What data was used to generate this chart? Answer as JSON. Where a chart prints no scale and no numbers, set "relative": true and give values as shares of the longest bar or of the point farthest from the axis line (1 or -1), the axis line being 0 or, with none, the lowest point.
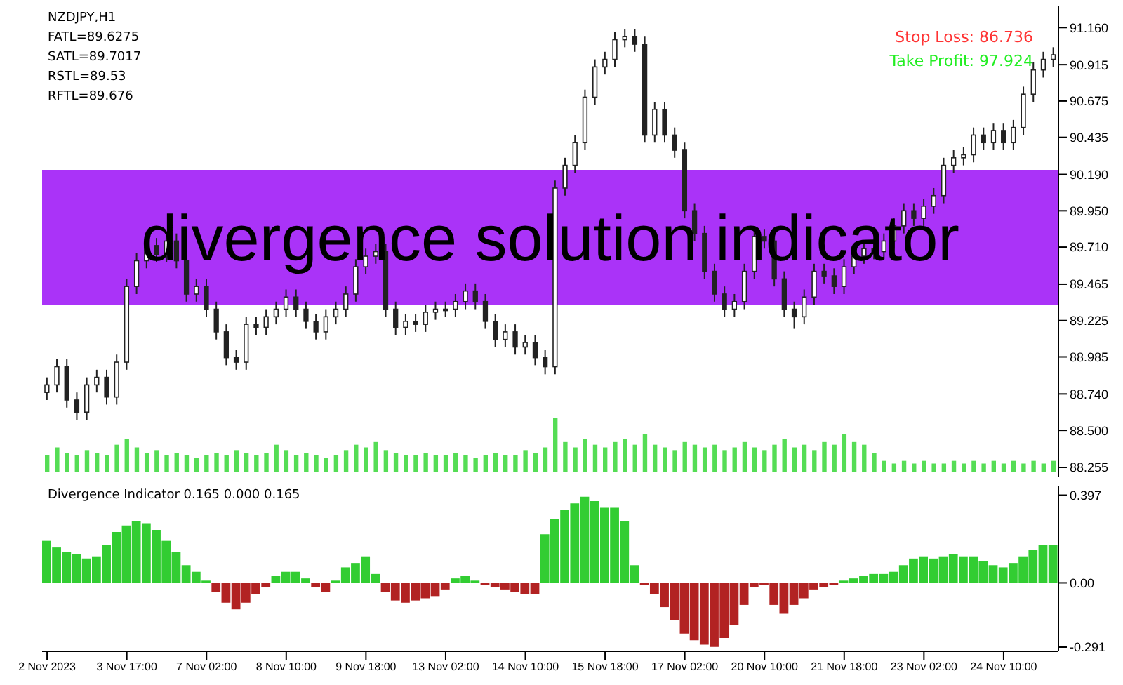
{
  "chart_data": [
    {
      "type": "candlestick",
      "title": "NZDJPY,H1",
      "annotations": [
        "FATL=89.6275",
        "SATL=89.7017",
        "RSTL=89.53",
        "RFTL=89.676",
        "Stop Loss: 86.736",
        "Take Profit: 97.924"
      ],
      "categories": [
        null,
        null,
        null,
        null,
        null,
        null,
        null,
        null,
        null,
        null,
        null,
        null,
        null,
        null,
        null,
        null,
        null,
        null,
        null,
        null,
        null,
        null,
        null,
        null,
        null,
        null,
        null,
        null,
        null,
        null,
        null,
        null,
        null,
        null,
        null,
        null,
        null,
        null,
        null,
        null,
        null,
        null,
        null,
        null,
        null,
        null,
        null,
        null,
        null,
        null,
        null,
        null,
        null,
        null,
        null,
        null,
        null,
        null,
        null,
        null,
        null,
        null,
        null,
        null,
        null,
        null,
        null,
        null,
        null,
        null,
        null,
        null,
        null,
        null,
        null,
        null,
        null,
        null,
        null,
        null,
        null,
        null,
        null,
        null,
        null,
        null,
        null,
        null,
        null,
        null,
        null,
        null,
        null,
        null,
        null,
        null,
        null,
        null,
        null,
        null,
        null,
        null
      ],
      "ohlc": [
        [
          88.75,
          88.85,
          88.7,
          88.8
        ],
        [
          88.8,
          88.97,
          88.75,
          88.92
        ],
        [
          88.92,
          88.97,
          88.65,
          88.7
        ],
        [
          88.7,
          88.75,
          88.57,
          88.62
        ],
        [
          88.62,
          88.85,
          88.57,
          88.8
        ],
        [
          88.8,
          88.9,
          88.75,
          88.85
        ],
        [
          88.85,
          88.9,
          88.67,
          88.72
        ],
        [
          88.72,
          89.0,
          88.67,
          88.95
        ],
        [
          88.95,
          89.5,
          88.9,
          89.45
        ],
        [
          89.45,
          89.67,
          89.4,
          89.62
        ],
        [
          89.62,
          89.77,
          89.57,
          89.72
        ],
        [
          89.72,
          89.77,
          89.61,
          89.66
        ],
        [
          89.66,
          89.8,
          89.61,
          89.75
        ],
        [
          89.75,
          89.8,
          89.57,
          89.62
        ],
        [
          89.62,
          89.67,
          89.35,
          89.4
        ],
        [
          89.4,
          89.5,
          89.35,
          89.45
        ],
        [
          89.45,
          89.5,
          89.25,
          89.3
        ],
        [
          89.3,
          89.35,
          89.1,
          89.15
        ],
        [
          89.15,
          89.2,
          88.93,
          88.98
        ],
        [
          88.98,
          89.03,
          88.9,
          88.95
        ],
        [
          88.95,
          89.25,
          88.9,
          89.2
        ],
        [
          89.2,
          89.25,
          89.13,
          89.18
        ],
        [
          89.18,
          89.3,
          89.13,
          89.25
        ],
        [
          89.25,
          89.35,
          89.2,
          89.3
        ],
        [
          89.3,
          89.43,
          89.25,
          89.38
        ],
        [
          89.38,
          89.43,
          89.25,
          89.3
        ],
        [
          89.3,
          89.35,
          89.17,
          89.22
        ],
        [
          89.22,
          89.27,
          89.1,
          89.15
        ],
        [
          89.15,
          89.3,
          89.1,
          89.25
        ],
        [
          89.25,
          89.35,
          89.2,
          89.3
        ],
        [
          89.3,
          89.45,
          89.25,
          89.4
        ],
        [
          89.4,
          89.63,
          89.35,
          89.58
        ],
        [
          89.58,
          89.7,
          89.53,
          89.65
        ],
        [
          89.65,
          89.73,
          89.6,
          89.68
        ],
        [
          89.68,
          89.73,
          89.25,
          89.3
        ],
        [
          89.3,
          89.35,
          89.13,
          89.18
        ],
        [
          89.18,
          89.27,
          89.13,
          89.22
        ],
        [
          89.22,
          89.27,
          89.15,
          89.2
        ],
        [
          89.2,
          89.33,
          89.15,
          89.28
        ],
        [
          89.28,
          89.35,
          89.23,
          89.3
        ],
        [
          89.3,
          89.35,
          89.25,
          89.3
        ],
        [
          89.3,
          89.4,
          89.25,
          89.35
        ],
        [
          89.35,
          89.47,
          89.3,
          89.42
        ],
        [
          89.42,
          89.47,
          89.3,
          89.35
        ],
        [
          89.35,
          89.4,
          89.17,
          89.22
        ],
        [
          89.22,
          89.27,
          89.05,
          89.1
        ],
        [
          89.1,
          89.2,
          89.05,
          89.15
        ],
        [
          89.15,
          89.2,
          89.0,
          89.05
        ],
        [
          89.05,
          89.13,
          89.0,
          89.08
        ],
        [
          89.08,
          89.13,
          88.93,
          88.98
        ],
        [
          88.98,
          89.03,
          88.87,
          88.92
        ],
        [
          88.92,
          90.15,
          88.87,
          90.1
        ],
        [
          90.1,
          90.3,
          90.05,
          90.25
        ],
        [
          90.25,
          90.45,
          90.2,
          90.4
        ],
        [
          90.4,
          90.75,
          90.35,
          90.7
        ],
        [
          90.7,
          90.95,
          90.65,
          90.9
        ],
        [
          90.9,
          91.0,
          90.85,
          90.95
        ],
        [
          90.95,
          91.13,
          90.9,
          91.08
        ],
        [
          91.08,
          91.15,
          91.03,
          91.1
        ],
        [
          91.1,
          91.15,
          91.0,
          91.05
        ],
        [
          91.05,
          91.1,
          90.4,
          90.45
        ],
        [
          90.45,
          90.67,
          90.4,
          90.62
        ],
        [
          90.62,
          90.67,
          90.4,
          90.45
        ],
        [
          90.45,
          90.5,
          90.3,
          90.35
        ],
        [
          90.35,
          90.4,
          89.9,
          89.95
        ],
        [
          89.95,
          90.0,
          89.75,
          89.8
        ],
        [
          89.8,
          89.85,
          89.5,
          89.55
        ],
        [
          89.55,
          89.6,
          89.35,
          89.4
        ],
        [
          89.4,
          89.45,
          89.25,
          89.3
        ],
        [
          89.3,
          89.4,
          89.25,
          89.35
        ],
        [
          89.35,
          89.6,
          89.3,
          89.55
        ],
        [
          89.55,
          89.83,
          89.5,
          89.78
        ],
        [
          89.78,
          89.83,
          89.7,
          89.75
        ],
        [
          89.75,
          89.8,
          89.45,
          89.5
        ],
        [
          89.5,
          89.55,
          89.25,
          89.3
        ],
        [
          89.3,
          89.35,
          89.17,
          89.25
        ],
        [
          89.25,
          89.43,
          89.2,
          89.38
        ],
        [
          89.38,
          89.6,
          89.33,
          89.55
        ],
        [
          89.55,
          89.6,
          89.47,
          89.52
        ],
        [
          89.52,
          89.57,
          89.4,
          89.45
        ],
        [
          89.45,
          89.63,
          89.4,
          89.58
        ],
        [
          89.58,
          89.7,
          89.53,
          89.65
        ],
        [
          89.65,
          89.75,
          89.6,
          89.7
        ],
        [
          89.7,
          89.75,
          89.63,
          89.68
        ],
        [
          89.68,
          89.8,
          89.63,
          89.75
        ],
        [
          89.75,
          89.9,
          89.7,
          89.85
        ],
        [
          89.85,
          90.0,
          89.8,
          89.95
        ],
        [
          89.95,
          90.0,
          89.85,
          89.9
        ],
        [
          89.9,
          90.03,
          89.85,
          89.98
        ],
        [
          89.98,
          90.1,
          89.93,
          90.05
        ],
        [
          90.05,
          90.3,
          90.0,
          90.25
        ],
        [
          90.25,
          90.35,
          90.2,
          90.3
        ],
        [
          90.3,
          90.37,
          90.25,
          90.32
        ],
        [
          90.32,
          90.5,
          90.27,
          90.45
        ],
        [
          90.45,
          90.5,
          90.35,
          90.4
        ],
        [
          90.4,
          90.53,
          90.35,
          90.48
        ],
        [
          90.48,
          90.53,
          90.35,
          90.4
        ],
        [
          90.4,
          90.55,
          90.35,
          90.5
        ],
        [
          90.5,
          90.77,
          90.45,
          90.72
        ],
        [
          90.72,
          90.93,
          90.67,
          90.88
        ],
        [
          90.88,
          91.0,
          90.83,
          90.95
        ],
        [
          90.95,
          91.03,
          90.9,
          90.98
        ]
      ],
      "ylim": [
        88.19,
        91.305
      ],
      "yticks": [
        {
          "value": 88.255,
          "label": "88.255"
        },
        {
          "value": 88.5,
          "label": "88.500"
        },
        {
          "value": 88.74,
          "label": "88.740"
        },
        {
          "value": 88.985,
          "label": "88.985"
        },
        {
          "value": 89.225,
          "label": "89.225"
        },
        {
          "value": 89.465,
          "label": "89.465"
        },
        {
          "value": 89.71,
          "label": "89.710"
        },
        {
          "value": 89.95,
          "label": "89.950"
        },
        {
          "value": 90.19,
          "label": "90.190"
        },
        {
          "value": 90.435,
          "label": "90.435"
        },
        {
          "value": 90.675,
          "label": "90.675"
        },
        {
          "value": 90.915,
          "label": "90.915"
        },
        {
          "value": 91.16,
          "label": "91.160"
        }
      ],
      "bands": [
        {
          "axis": "y",
          "from": 89.33,
          "to": 90.22,
          "color": "#aa33f8",
          "label": "divergence solution indicator"
        }
      ],
      "tick_labels": "y"
    },
    {
      "type": "bar",
      "title": "Divergence Indicator 0.165 0.000 0.165",
      "categories": [
        "2 Nov 2023",
        null,
        null,
        null,
        null,
        null,
        null,
        null,
        "3 Nov 17:00",
        null,
        null,
        null,
        null,
        null,
        null,
        null,
        "7 Nov 02:00",
        null,
        null,
        null,
        null,
        null,
        null,
        null,
        "8 Nov 10:00",
        null,
        null,
        null,
        null,
        null,
        null,
        null,
        "9 Nov 18:00",
        null,
        null,
        null,
        null,
        null,
        null,
        null,
        "13 Nov 02:00",
        null,
        null,
        null,
        null,
        null,
        null,
        null,
        "14 Nov 10:00",
        null,
        null,
        null,
        null,
        null,
        null,
        null,
        "15 Nov 18:00",
        null,
        null,
        null,
        null,
        null,
        null,
        null,
        "17 Nov 02:00",
        null,
        null,
        null,
        null,
        null,
        null,
        null,
        "20 Nov 10:00",
        null,
        null,
        null,
        null,
        null,
        null,
        null,
        "21 Nov 18:00",
        null,
        null,
        null,
        null,
        null,
        null,
        null,
        "23 Nov 02:00",
        null,
        null,
        null,
        null,
        null,
        null,
        null,
        "24 Nov 10:00",
        null,
        null,
        null,
        null,
        null
      ],
      "values": [
        0.19,
        0.16,
        0.14,
        0.13,
        0.11,
        0.12,
        0.17,
        0.23,
        0.26,
        0.28,
        0.27,
        0.24,
        0.19,
        0.14,
        0.08,
        0.05,
        0.01,
        -0.04,
        -0.09,
        -0.12,
        -0.09,
        -0.05,
        -0.02,
        0.03,
        0.05,
        0.05,
        0.02,
        -0.02,
        -0.04,
        0.01,
        0.07,
        0.09,
        0.12,
        0.04,
        -0.04,
        -0.08,
        -0.09,
        -0.08,
        -0.07,
        -0.06,
        -0.03,
        0.02,
        0.03,
        0.01,
        -0.01,
        -0.02,
        -0.03,
        -0.04,
        -0.05,
        -0.05,
        0.22,
        0.29,
        0.33,
        0.36,
        0.39,
        0.37,
        0.34,
        0.34,
        0.28,
        0.08,
        -0.01,
        -0.05,
        -0.11,
        -0.17,
        -0.23,
        -0.26,
        -0.28,
        -0.29,
        -0.25,
        -0.19,
        -0.1,
        -0.02,
        -0.01,
        -0.1,
        -0.14,
        -0.1,
        -0.07,
        -0.03,
        -0.02,
        -0.01,
        0.01,
        0.02,
        0.03,
        0.04,
        0.04,
        0.05,
        0.08,
        0.11,
        0.12,
        0.11,
        0.12,
        0.13,
        0.12,
        0.12,
        0.1,
        0.08,
        0.07,
        0.09,
        0.12,
        0.15,
        0.17,
        0.17
      ],
      "colors": [
        "#32cd32",
        "#32cd32",
        "#32cd32",
        "#32cd32",
        "#32cd32",
        "#32cd32",
        "#32cd32",
        "#32cd32",
        "#32cd32",
        "#32cd32",
        "#32cd32",
        "#32cd32",
        "#32cd32",
        "#32cd32",
        "#32cd32",
        "#32cd32",
        "#32cd32",
        "#b22222",
        "#b22222",
        "#b22222",
        "#b22222",
        "#b22222",
        "#b22222",
        "#32cd32",
        "#32cd32",
        "#32cd32",
        "#32cd32",
        "#b22222",
        "#b22222",
        "#32cd32",
        "#32cd32",
        "#32cd32",
        "#32cd32",
        "#32cd32",
        "#b22222",
        "#b22222",
        "#b22222",
        "#b22222",
        "#b22222",
        "#b22222",
        "#b22222",
        "#32cd32",
        "#32cd32",
        "#32cd32",
        "#b22222",
        "#b22222",
        "#b22222",
        "#b22222",
        "#b22222",
        "#b22222",
        "#32cd32",
        "#32cd32",
        "#32cd32",
        "#32cd32",
        "#32cd32",
        "#32cd32",
        "#32cd32",
        "#32cd32",
        "#32cd32",
        "#32cd32",
        "#b22222",
        "#b22222",
        "#b22222",
        "#b22222",
        "#b22222",
        "#b22222",
        "#b22222",
        "#b22222",
        "#b22222",
        "#b22222",
        "#b22222",
        "#b22222",
        "#b22222",
        "#b22222",
        "#b22222",
        "#b22222",
        "#b22222",
        "#b22222",
        "#b22222",
        "#b22222",
        "#32cd32",
        "#32cd32",
        "#32cd32",
        "#32cd32",
        "#32cd32",
        "#32cd32",
        "#32cd32",
        "#32cd32",
        "#32cd32",
        "#32cd32",
        "#32cd32",
        "#32cd32",
        "#32cd32",
        "#32cd32",
        "#32cd32",
        "#32cd32",
        "#32cd32",
        "#32cd32",
        "#32cd32",
        "#32cd32",
        "#32cd32",
        "#32cd32"
      ],
      "ylim": [
        -0.31,
        0.44
      ],
      "yticks": [
        0.397,
        {
          "value": 0,
          "label": "0.00"
        },
        -0.291
      ]
    },
    {
      "type": "bar",
      "relative": true,
      "color": "#55dd55",
      "categories": [
        null,
        null,
        null,
        null,
        null,
        null,
        null,
        null,
        null,
        null,
        null,
        null,
        null,
        null,
        null,
        null,
        null,
        null,
        null,
        null,
        null,
        null,
        null,
        null,
        null,
        null,
        null,
        null,
        null,
        null,
        null,
        null,
        null,
        null,
        null,
        null,
        null,
        null,
        null,
        null,
        null,
        null,
        null,
        null,
        null,
        null,
        null,
        null,
        null,
        null,
        null,
        null,
        null,
        null,
        null,
        null,
        null,
        null,
        null,
        null,
        null,
        null,
        null,
        null,
        null,
        null,
        null,
        null,
        null,
        null,
        null,
        null,
        null,
        null,
        null,
        null,
        null,
        null,
        null,
        null,
        null,
        null,
        null,
        null,
        null,
        null,
        null,
        null,
        null,
        null,
        null,
        null,
        null,
        null,
        null,
        null,
        null,
        null,
        null,
        null,
        null,
        null
      ],
      "values": [
        0.3,
        0.45,
        0.35,
        0.3,
        0.4,
        0.35,
        0.3,
        0.5,
        0.6,
        0.45,
        0.35,
        0.4,
        0.3,
        0.35,
        0.3,
        0.25,
        0.3,
        0.35,
        0.3,
        0.4,
        0.35,
        0.3,
        0.35,
        0.5,
        0.4,
        0.3,
        0.35,
        0.3,
        0.25,
        0.3,
        0.4,
        0.5,
        0.45,
        0.55,
        0.4,
        0.35,
        0.3,
        0.3,
        0.35,
        0.3,
        0.3,
        0.35,
        0.3,
        0.25,
        0.3,
        0.35,
        0.3,
        0.3,
        0.4,
        0.35,
        0.45,
        1,
        0.55,
        0.45,
        0.6,
        0.5,
        0.45,
        0.55,
        0.6,
        0.5,
        0.7,
        0.5,
        0.45,
        0.4,
        0.55,
        0.5,
        0.45,
        0.5,
        0.4,
        0.45,
        0.55,
        0.45,
        0.4,
        0.5,
        0.6,
        0.45,
        0.5,
        0.4,
        0.55,
        0.5,
        0.7,
        0.55,
        0.5,
        0.35,
        0.2,
        0.15,
        0.2,
        0.15,
        0.2,
        0.15,
        0.15,
        0.2,
        0.15,
        0.2,
        0.15,
        0.2,
        0.15,
        0.2,
        0.15,
        0.2,
        0.15,
        0.2
      ],
      "tick_labels": false
    }
  ]
}
